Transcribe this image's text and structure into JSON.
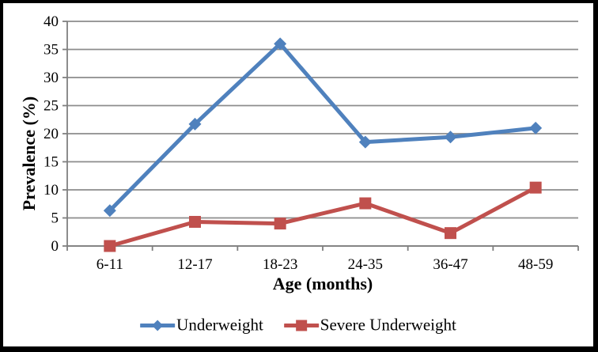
{
  "chart_data": {
    "type": "line",
    "categories": [
      "6-11",
      "12-17",
      "18-23",
      "24-35",
      "36-47",
      "48-59"
    ],
    "series": [
      {
        "name": "Underweight",
        "color": "#4F81BD",
        "marker": "diamond",
        "values": [
          6.3,
          21.7,
          36.0,
          18.5,
          19.4,
          21.0
        ]
      },
      {
        "name": "Severe Underweight",
        "color": "#C0504D",
        "marker": "square",
        "values": [
          0.0,
          4.3,
          4.0,
          7.6,
          2.3,
          10.4
        ]
      }
    ],
    "title": "",
    "xlabel": "Age (months)",
    "ylabel": "Prevalence (%)",
    "ylim": [
      0,
      40
    ],
    "yticks": [
      0,
      5,
      10,
      15,
      20,
      25,
      30,
      35,
      40
    ],
    "grid": true,
    "legend_position": "bottom",
    "gridline_color": "#8C8C8C",
    "axis_color": "#7F7F7F",
    "text_color": "#000000",
    "frame_color": "#000000"
  }
}
